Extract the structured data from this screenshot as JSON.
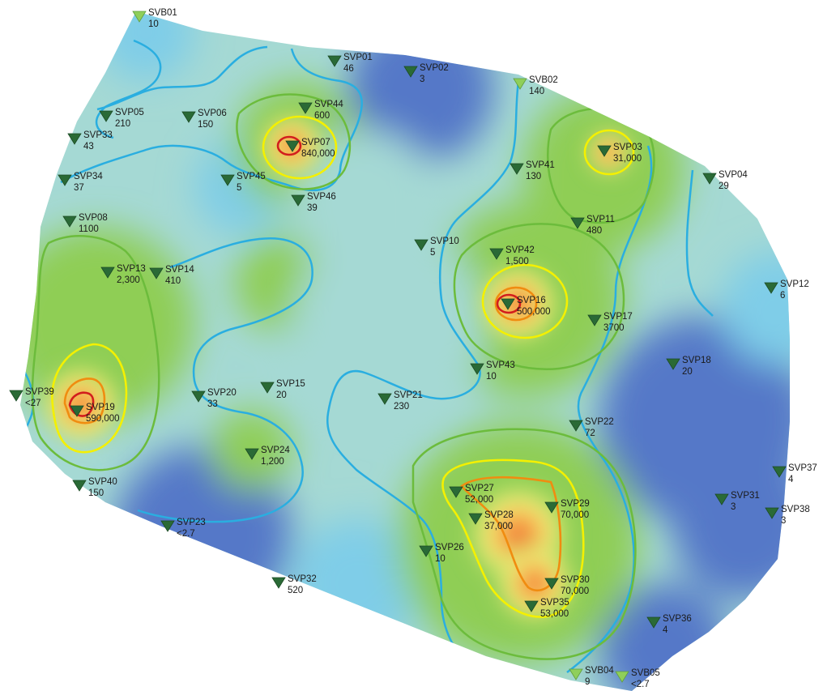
{
  "map": {
    "colors": {
      "background": "#ffffff",
      "low": "#5578c8",
      "low_mid": "#7fcde8",
      "mid": "#a5d9d4",
      "green": "#8fce55",
      "yellow": "#f2f07a",
      "orange": "#f7b04a",
      "red": "#e8322a",
      "contour_blue": "#2aaee0",
      "contour_green": "#6cbc3c",
      "contour_yellow": "#f4f000",
      "contour_orange": "#f08c10",
      "contour_red": "#d21d1d",
      "marker_dark": "#2a6a36",
      "marker_light": "#8fcf5a"
    },
    "stations": [
      {
        "id": "SVB01",
        "value": "10",
        "marker": "light"
      },
      {
        "id": "SVP01",
        "value": "46",
        "marker": "dark"
      },
      {
        "id": "SVP02",
        "value": "3",
        "marker": "dark"
      },
      {
        "id": "SVB02",
        "value": "140",
        "marker": "light"
      },
      {
        "id": "SVP05",
        "value": "210",
        "marker": "dark"
      },
      {
        "id": "SVP06",
        "value": "150",
        "marker": "dark"
      },
      {
        "id": "SVP44",
        "value": "600",
        "marker": "dark"
      },
      {
        "id": "SVP33",
        "value": "43",
        "marker": "dark"
      },
      {
        "id": "SVP07",
        "value": "840,000",
        "marker": "dark"
      },
      {
        "id": "SVP03",
        "value": "31,000",
        "marker": "dark"
      },
      {
        "id": "SVP34",
        "value": "37",
        "marker": "dark"
      },
      {
        "id": "SVP45",
        "value": "5",
        "marker": "dark"
      },
      {
        "id": "SVP41",
        "value": "130",
        "marker": "dark"
      },
      {
        "id": "SVP04",
        "value": "29",
        "marker": "dark"
      },
      {
        "id": "SVP46",
        "value": "39",
        "marker": "dark"
      },
      {
        "id": "SVP08",
        "value": "1100",
        "marker": "dark"
      },
      {
        "id": "SVP11",
        "value": "480",
        "marker": "dark"
      },
      {
        "id": "SVP13",
        "value": "2,300",
        "marker": "dark"
      },
      {
        "id": "SVP10",
        "value": "5",
        "marker": "dark"
      },
      {
        "id": "SVP42",
        "value": "1,500",
        "marker": "dark"
      },
      {
        "id": "SVP14",
        "value": "410",
        "marker": "dark"
      },
      {
        "id": "SVP12",
        "value": "6",
        "marker": "dark"
      },
      {
        "id": "SVP16",
        "value": "500,000",
        "marker": "dark"
      },
      {
        "id": "SVP17",
        "value": "3700",
        "marker": "dark"
      },
      {
        "id": "SVP18",
        "value": "20",
        "marker": "dark"
      },
      {
        "id": "SVP43",
        "value": "10",
        "marker": "dark"
      },
      {
        "id": "SVP39",
        "value": "<27",
        "marker": "dark"
      },
      {
        "id": "SVP15",
        "value": "20",
        "marker": "dark"
      },
      {
        "id": "SVP20",
        "value": "33",
        "marker": "dark"
      },
      {
        "id": "SVP21",
        "value": "230",
        "marker": "dark"
      },
      {
        "id": "SVP19",
        "value": "590,000",
        "marker": "dark"
      },
      {
        "id": "SVP22",
        "value": "72",
        "marker": "dark"
      },
      {
        "id": "SVP24",
        "value": "1,200",
        "marker": "dark"
      },
      {
        "id": "SVP37",
        "value": "4",
        "marker": "dark"
      },
      {
        "id": "SVP40",
        "value": "150",
        "marker": "dark"
      },
      {
        "id": "SVP27",
        "value": "52,000",
        "marker": "dark"
      },
      {
        "id": "SVP29",
        "value": "70,000",
        "marker": "dark"
      },
      {
        "id": "SVP31",
        "value": "3",
        "marker": "dark"
      },
      {
        "id": "SVP28",
        "value": "37,000",
        "marker": "dark"
      },
      {
        "id": "SVP38",
        "value": "3",
        "marker": "dark"
      },
      {
        "id": "SVP23",
        "value": "<2.7",
        "marker": "dark"
      },
      {
        "id": "SVP26",
        "value": "10",
        "marker": "dark"
      },
      {
        "id": "SVP30",
        "value": "70,000",
        "marker": "dark"
      },
      {
        "id": "SVP32",
        "value": "520",
        "marker": "dark"
      },
      {
        "id": "SVP35",
        "value": "53,000",
        "marker": "dark"
      },
      {
        "id": "SVP36",
        "value": "4",
        "marker": "dark"
      },
      {
        "id": "SVB04",
        "value": "9",
        "marker": "light"
      },
      {
        "id": "SVB05",
        "value": "<2.7",
        "marker": "light"
      }
    ]
  }
}
